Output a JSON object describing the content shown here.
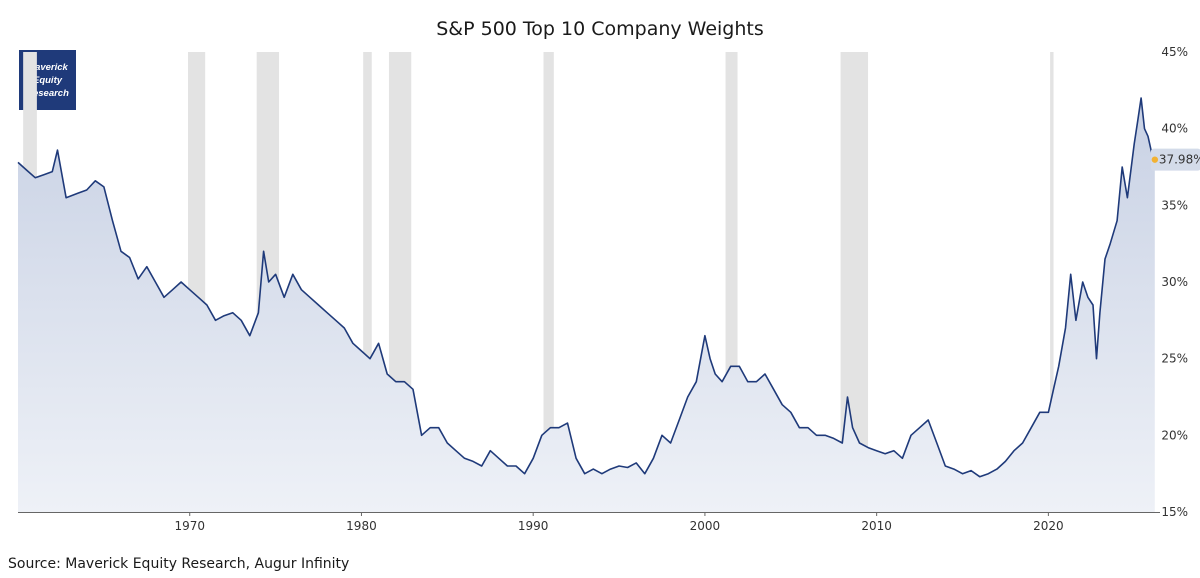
{
  "chart_data": {
    "type": "area",
    "title": "S&P 500 Top 10 Company Weights",
    "source": "Source: Maverick Equity Research, Augur Infinity",
    "logo_lines": [
      "Maverick",
      "Equity",
      "Research"
    ],
    "x_range": [
      1960.0,
      2026.5
    ],
    "y_range": [
      15,
      45
    ],
    "y_axis_position": "right",
    "x_ticks": [
      1970,
      1980,
      1990,
      2000,
      2010,
      2020
    ],
    "y_ticks": [
      15,
      20,
      25,
      30,
      35,
      40,
      45
    ],
    "y_tick_labels": [
      "15%",
      "20%",
      "25%",
      "30%",
      "35%",
      "40%",
      "45%"
    ],
    "end_label": "37.98%",
    "end_value": 37.98,
    "colors": {
      "line": "#1f3a7a",
      "fill_top": "#c8d1e4",
      "fill_bottom": "#eef1f7",
      "recession": "#e3e3e3",
      "end_marker": "#f2b233",
      "end_label_bg": "#d3dbe9"
    },
    "recessions": [
      [
        1960.3,
        1961.1
      ],
      [
        1969.9,
        1970.9
      ],
      [
        1973.9,
        1975.2
      ],
      [
        1980.1,
        1980.6
      ],
      [
        1981.6,
        1982.9
      ],
      [
        1990.6,
        1991.2
      ],
      [
        2001.2,
        2001.9
      ],
      [
        2007.9,
        2009.5
      ],
      [
        2020.1,
        2020.3
      ]
    ],
    "x": [
      1960.0,
      1960.5,
      1961.0,
      1961.5,
      1962.0,
      1962.3,
      1962.8,
      1963.5,
      1964.0,
      1964.5,
      1965.0,
      1965.5,
      1966.0,
      1966.5,
      1967.0,
      1967.5,
      1968.0,
      1968.5,
      1969.0,
      1969.5,
      1970.0,
      1970.5,
      1971.0,
      1971.5,
      1972.0,
      1972.5,
      1973.0,
      1973.5,
      1974.0,
      1974.3,
      1974.6,
      1975.0,
      1975.5,
      1976.0,
      1976.5,
      1977.0,
      1977.5,
      1978.0,
      1978.5,
      1979.0,
      1979.5,
      1980.0,
      1980.5,
      1981.0,
      1981.5,
      1982.0,
      1982.5,
      1983.0,
      1983.5,
      1984.0,
      1984.5,
      1985.0,
      1985.5,
      1986.0,
      1986.5,
      1987.0,
      1987.5,
      1988.0,
      1988.5,
      1989.0,
      1989.5,
      1990.0,
      1990.5,
      1991.0,
      1991.5,
      1992.0,
      1992.5,
      1993.0,
      1993.5,
      1994.0,
      1994.5,
      1995.0,
      1995.5,
      1996.0,
      1996.5,
      1997.0,
      1997.5,
      1998.0,
      1998.5,
      1999.0,
      1999.5,
      2000.0,
      2000.3,
      2000.6,
      2001.0,
      2001.5,
      2002.0,
      2002.5,
      2003.0,
      2003.5,
      2004.0,
      2004.5,
      2005.0,
      2005.5,
      2006.0,
      2006.5,
      2007.0,
      2007.5,
      2008.0,
      2008.3,
      2008.6,
      2009.0,
      2009.5,
      2010.0,
      2010.5,
      2011.0,
      2011.5,
      2012.0,
      2012.5,
      2013.0,
      2013.5,
      2014.0,
      2014.5,
      2015.0,
      2015.5,
      2016.0,
      2016.5,
      2017.0,
      2017.5,
      2018.0,
      2018.5,
      2019.0,
      2019.5,
      2020.0,
      2020.3,
      2020.6,
      2021.0,
      2021.3,
      2021.6,
      2022.0,
      2022.3,
      2022.6,
      2022.8,
      2023.0,
      2023.3,
      2023.6,
      2024.0,
      2024.3,
      2024.6,
      2025.0,
      2025.2,
      2025.4,
      2025.6,
      2025.8,
      2026.0,
      2026.2
    ],
    "values": [
      37.8,
      37.3,
      36.8,
      37.0,
      37.2,
      38.6,
      35.5,
      35.8,
      36.0,
      36.6,
      36.2,
      34.0,
      32.0,
      31.6,
      30.2,
      31.0,
      30.0,
      29.0,
      29.5,
      30.0,
      29.5,
      29.0,
      28.5,
      27.5,
      27.8,
      28.0,
      27.5,
      26.5,
      28.0,
      32.0,
      30.0,
      30.5,
      29.0,
      30.5,
      29.5,
      29.0,
      28.5,
      28.0,
      27.5,
      27.0,
      26.0,
      25.5,
      25.0,
      26.0,
      24.0,
      23.5,
      23.5,
      23.0,
      20.0,
      20.5,
      20.5,
      19.5,
      19.0,
      18.5,
      18.3,
      18.0,
      19.0,
      18.5,
      18.0,
      18.0,
      17.5,
      18.5,
      20.0,
      20.5,
      20.5,
      20.8,
      18.5,
      17.5,
      17.8,
      17.5,
      17.8,
      18.0,
      17.9,
      18.2,
      17.5,
      18.5,
      20.0,
      19.5,
      21.0,
      22.5,
      23.5,
      26.5,
      25.0,
      24.0,
      23.5,
      24.5,
      24.5,
      23.5,
      23.5,
      24.0,
      23.0,
      22.0,
      21.5,
      20.5,
      20.5,
      20.0,
      20.0,
      19.8,
      19.5,
      22.5,
      20.5,
      19.5,
      19.2,
      19.0,
      18.8,
      19.0,
      18.5,
      20.0,
      20.5,
      21.0,
      19.5,
      18.0,
      17.8,
      17.5,
      17.7,
      17.3,
      17.5,
      17.8,
      18.3,
      19.0,
      19.5,
      20.5,
      21.5,
      21.5,
      23.0,
      24.5,
      27.0,
      30.5,
      27.5,
      30.0,
      29.0,
      28.5,
      25.0,
      28.0,
      31.5,
      32.5,
      34.0,
      37.5,
      35.5,
      39.0,
      40.5,
      42.0,
      40.0,
      39.5,
      38.5,
      37.98
    ]
  }
}
